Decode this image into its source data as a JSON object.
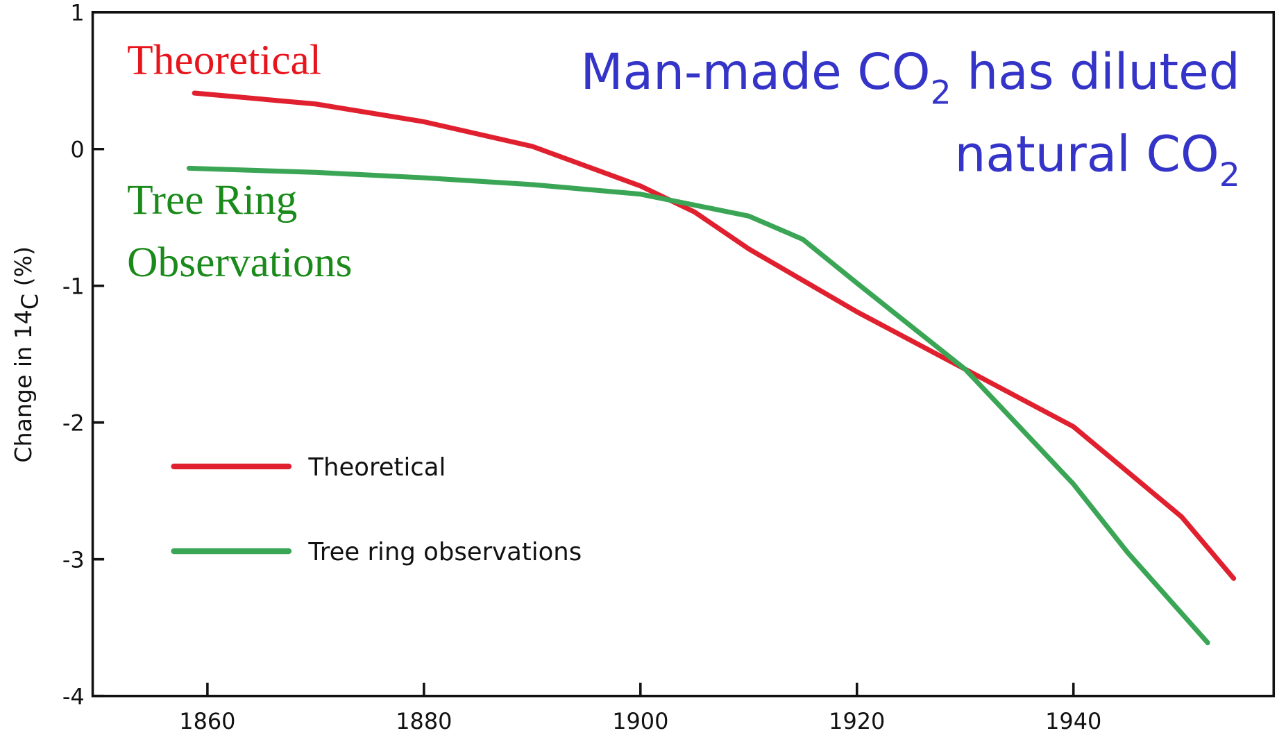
{
  "chart_data": {
    "type": "line",
    "xlim": [
      1849.4,
      1958.5
    ],
    "xticks": [
      1860,
      1880,
      1900,
      1920,
      1940
    ],
    "ylim": [
      -4,
      1
    ],
    "yticks": [
      -4,
      -3,
      -2,
      -1,
      0,
      1
    ],
    "y_label": [
      "Change in 14",
      "C",
      " (%)"
    ],
    "legend": "lower left",
    "series": [
      {
        "name": "Theoretical",
        "color": "#e0202e",
        "x": [
          1858.8,
          1870,
          1880,
          1890,
          1900,
          1905,
          1910,
          1920,
          1930,
          1940,
          1950,
          1954.8
        ],
        "values": [
          0.41,
          0.33,
          0.2,
          0.02,
          -0.27,
          -0.46,
          -0.73,
          -1.19,
          -1.61,
          -2.03,
          -2.69,
          -3.14
        ]
      },
      {
        "name": "Tree ring observations",
        "color": "#3aa655",
        "x": [
          1858.3,
          1870,
          1880,
          1890,
          1900,
          1910,
          1915,
          1920,
          1930,
          1940,
          1945,
          1952.4
        ],
        "values": [
          -0.14,
          -0.17,
          -0.21,
          -0.26,
          -0.33,
          -0.49,
          -0.66,
          -0.98,
          -1.61,
          -2.45,
          -2.95,
          -3.61
        ]
      }
    ],
    "annotations": {
      "theoretical": "Theoretical",
      "tree_ring": [
        "Tree Ring",
        "Observations"
      ],
      "headline": [
        [
          "Man-made CO",
          "2",
          " has diluted"
        ],
        [
          "natural CO",
          "2"
        ]
      ]
    }
  }
}
